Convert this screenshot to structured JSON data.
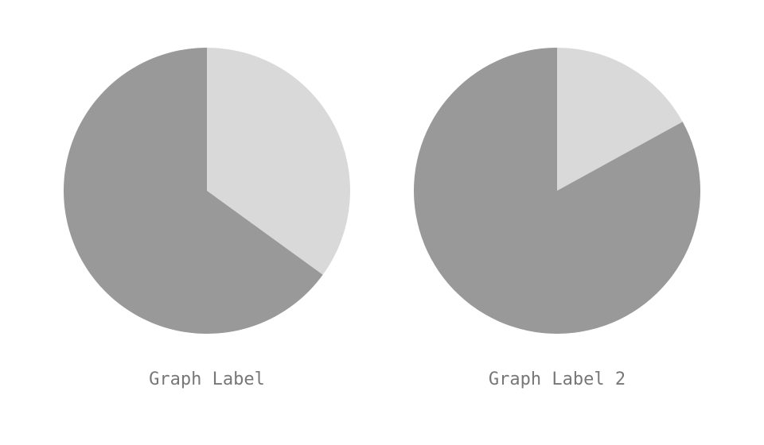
{
  "chart_data": [
    {
      "type": "pie",
      "label": "Graph Label",
      "slices": [
        {
          "value": 35,
          "color": "#d9d9d9"
        },
        {
          "value": 65,
          "color": "#999999"
        }
      ]
    },
    {
      "type": "pie",
      "label": "Graph Label 2",
      "slices": [
        {
          "value": 17,
          "color": "#d9d9d9"
        },
        {
          "value": 83,
          "color": "#999999"
        }
      ]
    }
  ]
}
